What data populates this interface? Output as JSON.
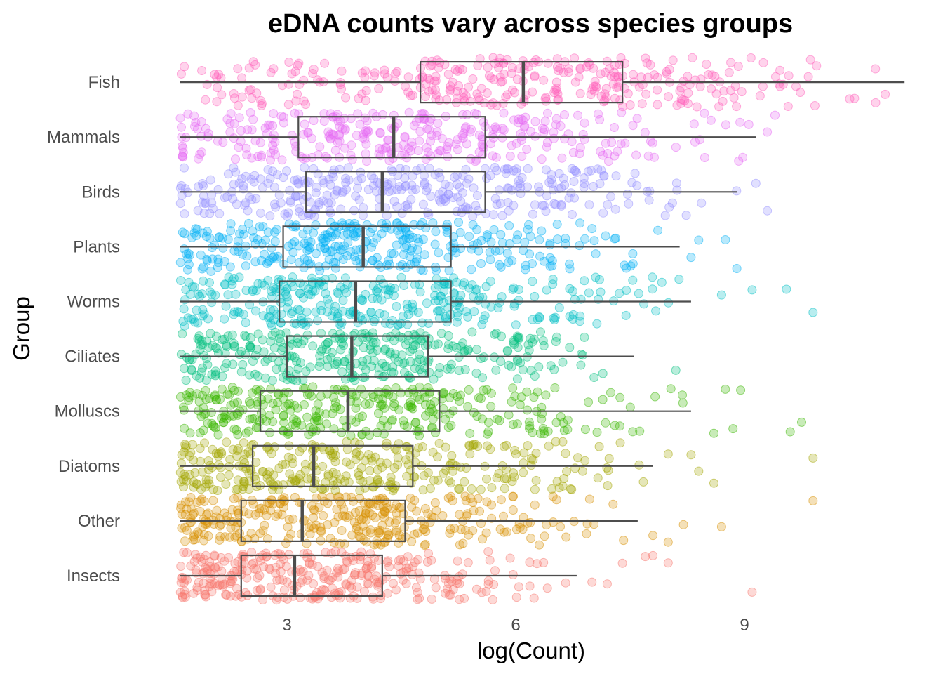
{
  "chart_data": {
    "type": "boxplot",
    "orientation": "horizontal",
    "overlay": "jittered points",
    "title": "eDNA counts vary across species groups",
    "xlabel": "log(Count)",
    "ylabel": "Group",
    "xlim": [
      1.4,
      11.2
    ],
    "xticks": [
      3,
      6,
      9
    ],
    "xtick_labels": [
      "3",
      "6",
      "9"
    ],
    "grid": false,
    "legend": "none",
    "categories": [
      "Insects",
      "Other",
      "Diatoms",
      "Molluscs",
      "Ciliates",
      "Worms",
      "Plants",
      "Birds",
      "Mammals",
      "Fish"
    ],
    "colors": [
      "#F8766D",
      "#D89000",
      "#A3A500",
      "#39B600",
      "#00BF7D",
      "#00BFC4",
      "#00B0F6",
      "#9590FF",
      "#E76BF3",
      "#FF62BC"
    ],
    "box_outline_color": "#4d4d4d",
    "series": [
      {
        "category": "Insects",
        "whisker_low": 1.6,
        "q1": 2.4,
        "median": 3.1,
        "q3": 4.25,
        "whisker_high": 6.8,
        "outliers": [
          7.0,
          7.2,
          7.4,
          7.7,
          7.8,
          8.0,
          9.1
        ]
      },
      {
        "category": "Other",
        "whisker_low": 1.6,
        "q1": 2.4,
        "median": 3.2,
        "q3": 4.55,
        "whisker_high": 7.6,
        "outliers": [
          7.8,
          8.0,
          8.2,
          8.7,
          9.9
        ]
      },
      {
        "category": "Diatoms",
        "whisker_low": 1.6,
        "q1": 2.55,
        "median": 3.35,
        "q3": 4.65,
        "whisker_high": 7.8,
        "outliers": [
          8.0,
          8.3,
          8.4,
          8.6,
          9.9
        ]
      },
      {
        "category": "Molluscs",
        "whisker_low": 1.6,
        "q1": 2.65,
        "median": 3.8,
        "q3": 5.0,
        "whisker_high": 8.3,
        "outliers": [
          8.6,
          8.75,
          8.85,
          8.95,
          9.6,
          9.75
        ]
      },
      {
        "category": "Ciliates",
        "whisker_low": 1.6,
        "q1": 3.0,
        "median": 3.85,
        "q3": 4.85,
        "whisker_high": 7.55,
        "outliers": [
          8.1
        ]
      },
      {
        "category": "Worms",
        "whisker_low": 1.6,
        "q1": 2.9,
        "median": 3.9,
        "q3": 5.15,
        "whisker_high": 8.3,
        "outliers": [
          8.7,
          9.1,
          9.55,
          9.9
        ]
      },
      {
        "category": "Plants",
        "whisker_low": 1.6,
        "q1": 2.95,
        "median": 4.0,
        "q3": 5.15,
        "whisker_high": 8.15,
        "outliers": [
          8.3,
          8.4,
          8.75,
          8.9
        ]
      },
      {
        "category": "Birds",
        "whisker_low": 1.6,
        "q1": 3.25,
        "median": 4.25,
        "q3": 5.6,
        "whisker_high": 8.9,
        "outliers": [
          9.15,
          9.3
        ]
      },
      {
        "category": "Mammals",
        "whisker_low": 1.6,
        "q1": 3.15,
        "median": 4.4,
        "q3": 5.6,
        "whisker_high": 9.15,
        "outliers": [
          9.3,
          9.4
        ]
      },
      {
        "category": "Fish",
        "whisker_low": 1.6,
        "q1": 4.75,
        "median": 6.1,
        "q3": 7.4,
        "whisker_high": 11.1,
        "outliers": []
      }
    ]
  }
}
